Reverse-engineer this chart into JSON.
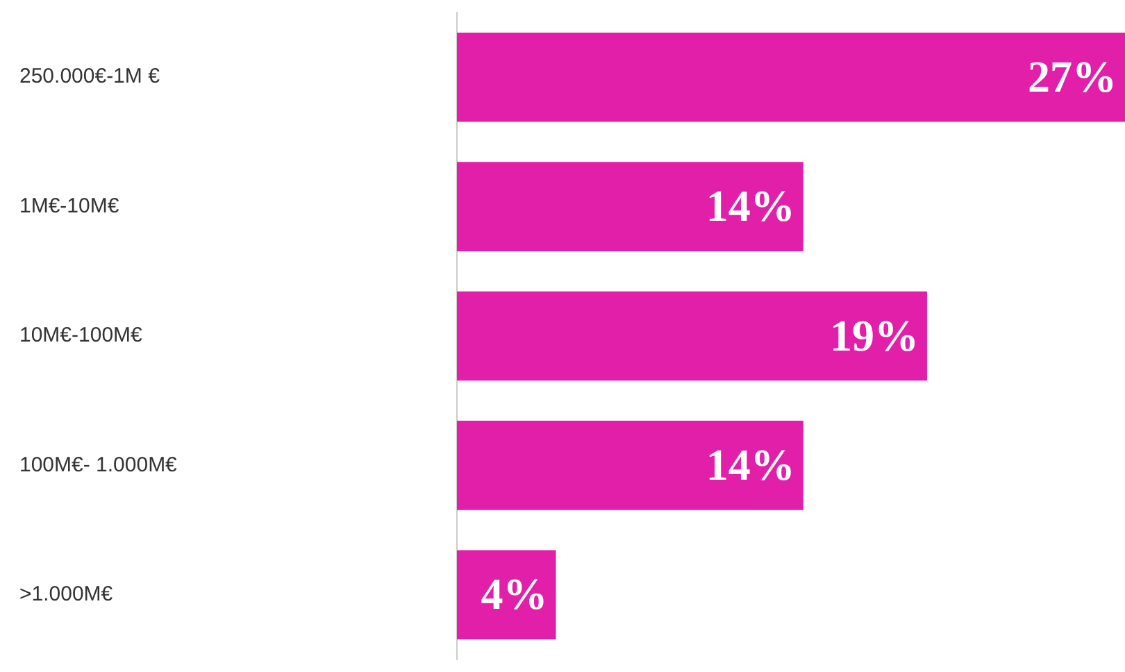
{
  "chart_data": {
    "type": "bar",
    "orientation": "horizontal",
    "categories": [
      "250.000€-1M €",
      "1M€-10M€",
      "10M€-100M€",
      "100M€- 1.000M€",
      ">1.000M€"
    ],
    "values": [
      27,
      14,
      19,
      14,
      4
    ],
    "color": "#e21fa9",
    "value_labels": [
      "27%",
      "14%",
      "19%",
      "14%",
      "4%"
    ],
    "legend": false
  }
}
